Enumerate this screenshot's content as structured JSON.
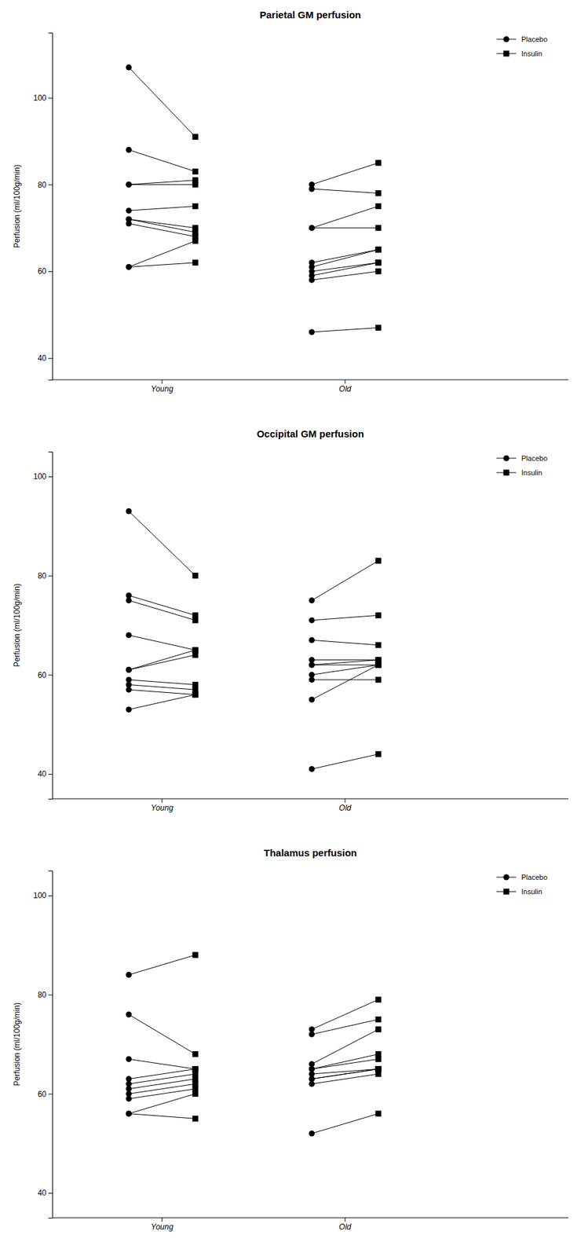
{
  "chart_data": [
    {
      "type": "paired_dot",
      "title": "Parietal GM perfusion",
      "ylabel": "Perfusion (ml/100g/min)",
      "categories": [
        "Young",
        "Old"
      ],
      "series": [
        {
          "name": "Placebo",
          "marker": "circle",
          "color": "#000000",
          "values": [
            [
              107,
              88,
              80,
              80,
              74,
              72,
              72,
              71,
              61,
              61
            ],
            [
              80,
              79,
              70,
              70,
              62,
              61,
              60,
              59,
              58,
              46
            ]
          ]
        },
        {
          "name": "Insulin",
          "marker": "square",
          "color": "#000000",
          "values": [
            [
              91,
              83,
              81,
              80,
              75,
              70,
              69,
              68,
              67,
              62
            ],
            [
              85,
              78,
              75,
              70,
              65,
              65,
              62,
              62,
              60,
              47
            ]
          ]
        }
      ],
      "ylim": [
        35,
        115
      ],
      "yticks": [
        40,
        60,
        80,
        100
      ],
      "grid": false,
      "legend": "upper right"
    },
    {
      "type": "paired_dot",
      "title": "Occipital GM perfusion",
      "ylabel": "Perfusion (ml/100g/min)",
      "categories": [
        "Young",
        "Old"
      ],
      "series": [
        {
          "name": "Placebo",
          "marker": "circle",
          "color": "#000000",
          "values": [
            [
              93,
              76,
              75,
              68,
              61,
              61,
              59,
              58,
              57,
              53
            ],
            [
              75,
              71,
              67,
              63,
              62,
              62,
              60,
              59,
              55,
              41
            ]
          ]
        },
        {
          "name": "Insulin",
          "marker": "square",
          "color": "#000000",
          "values": [
            [
              80,
              72,
              71,
              65,
              65,
              64,
              58,
              57,
              56,
              56
            ],
            [
              83,
              72,
              66,
              63,
              63,
              62,
              62,
              59,
              62,
              44
            ]
          ]
        }
      ],
      "ylim": [
        35,
        105
      ],
      "yticks": [
        40,
        60,
        80,
        100
      ],
      "grid": false,
      "legend": "upper right"
    },
    {
      "type": "paired_dot",
      "title": "Thalamus perfusion",
      "ylabel": "Perfusion (ml/100g/min)",
      "categories": [
        "Young",
        "Old"
      ],
      "series": [
        {
          "name": "Placebo",
          "marker": "circle",
          "color": "#000000",
          "values": [
            [
              84,
              76,
              67,
              63,
              62,
              61,
              60,
              59,
              56,
              56
            ],
            [
              73,
              72,
              66,
              65,
              65,
              64,
              63,
              63,
              62,
              52
            ]
          ]
        },
        {
          "name": "Insulin",
          "marker": "square",
          "color": "#000000",
          "values": [
            [
              88,
              68,
              65,
              65,
              64,
              63,
              62,
              61,
              60,
              55
            ],
            [
              79,
              75,
              73,
              68,
              67,
              65,
              65,
              65,
              64,
              56
            ]
          ]
        }
      ],
      "ylim": [
        35,
        105
      ],
      "yticks": [
        40,
        60,
        80,
        100
      ],
      "grid": false,
      "legend": "upper right"
    }
  ]
}
